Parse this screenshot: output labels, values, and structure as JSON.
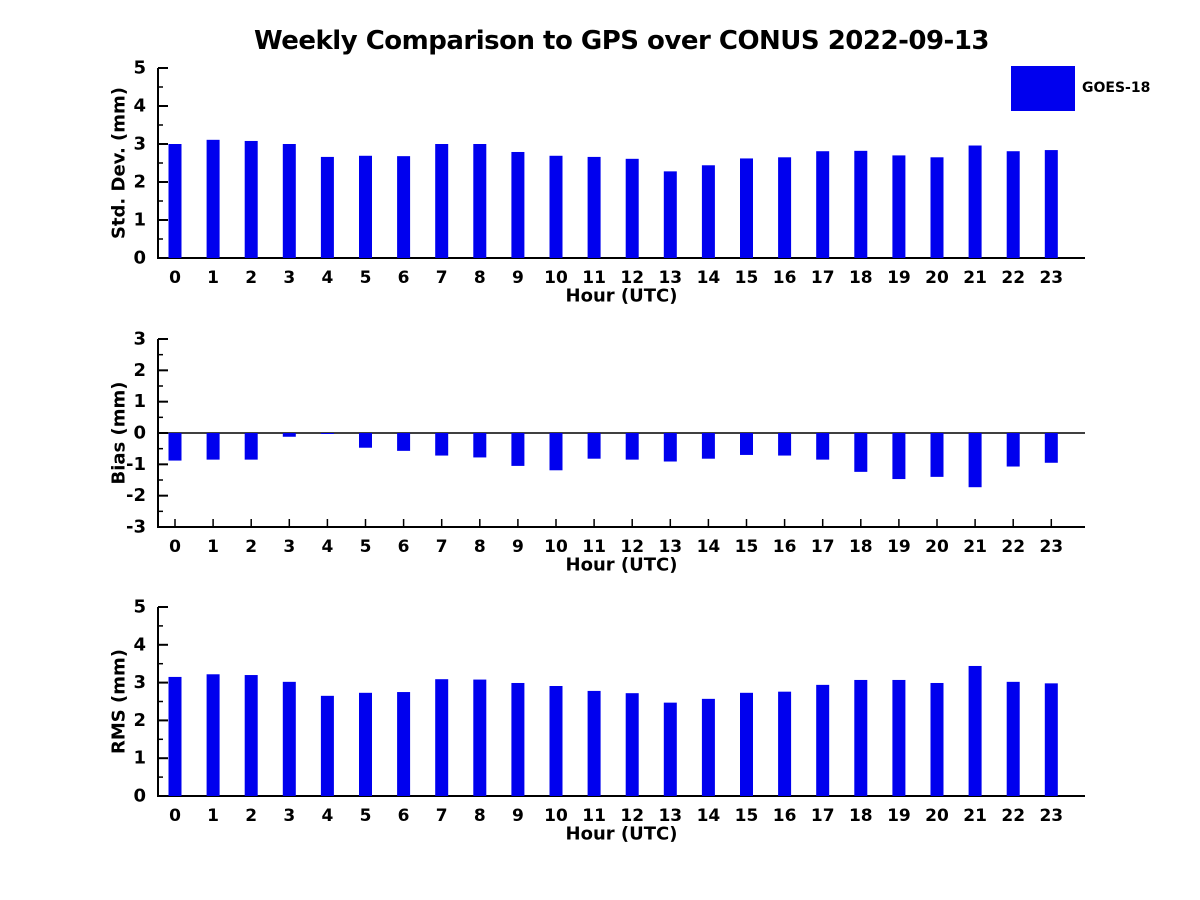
{
  "title": "Weekly Comparison to GPS over CONUS 2022-09-13",
  "legend": {
    "label": "GOES-18",
    "color": "#0000ee",
    "position": "upper-right"
  },
  "colors": {
    "bar": "#0000ee",
    "axis": "#000000",
    "text": "#000000",
    "background": "#ffffff"
  },
  "chart_data": [
    {
      "type": "bar",
      "name": "std-dev",
      "series_name": "GOES-18",
      "ylabel": "Std. Dev. (mm)",
      "xlabel": "Hour (UTC)",
      "categories": [
        "0",
        "1",
        "2",
        "3",
        "4",
        "5",
        "6",
        "7",
        "8",
        "9",
        "10",
        "11",
        "12",
        "13",
        "14",
        "15",
        "16",
        "17",
        "18",
        "19",
        "20",
        "21",
        "22",
        "23"
      ],
      "values": [
        3.0,
        3.11,
        3.08,
        3.0,
        2.66,
        2.69,
        2.68,
        3.0,
        3.0,
        2.79,
        2.69,
        2.66,
        2.61,
        2.28,
        2.44,
        2.62,
        2.65,
        2.81,
        2.82,
        2.7,
        2.65,
        2.96,
        2.81,
        2.84
      ],
      "ylim": [
        0,
        5
      ],
      "yticks": [
        0,
        1,
        2,
        3,
        4,
        5
      ],
      "minor_tick_step": 0.5,
      "grid": false,
      "x_axis_ticks_visible": false,
      "zero_line": false
    },
    {
      "type": "bar",
      "name": "bias",
      "series_name": "GOES-18",
      "ylabel": "Bias (mm)",
      "xlabel": "Hour (UTC)",
      "categories": [
        "0",
        "1",
        "2",
        "3",
        "4",
        "5",
        "6",
        "7",
        "8",
        "9",
        "10",
        "11",
        "12",
        "13",
        "14",
        "15",
        "16",
        "17",
        "18",
        "19",
        "20",
        "21",
        "22",
        "23"
      ],
      "values": [
        -0.88,
        -0.85,
        -0.85,
        -0.12,
        -0.03,
        -0.47,
        -0.57,
        -0.72,
        -0.78,
        -1.05,
        -1.19,
        -0.82,
        -0.85,
        -0.91,
        -0.82,
        -0.7,
        -0.72,
        -0.85,
        -1.24,
        -1.47,
        -1.4,
        -1.73,
        -1.07,
        -0.95
      ],
      "ylim": [
        -3,
        3
      ],
      "yticks": [
        -3,
        -2,
        -1,
        0,
        1,
        2,
        3
      ],
      "minor_tick_step": 0.5,
      "grid": false,
      "x_axis_ticks_visible": true,
      "zero_line": true
    },
    {
      "type": "bar",
      "name": "rms",
      "series_name": "GOES-18",
      "ylabel": "RMS (mm)",
      "xlabel": "Hour (UTC)",
      "categories": [
        "0",
        "1",
        "2",
        "3",
        "4",
        "5",
        "6",
        "7",
        "8",
        "9",
        "10",
        "11",
        "12",
        "13",
        "14",
        "15",
        "16",
        "17",
        "18",
        "19",
        "20",
        "21",
        "22",
        "23"
      ],
      "values": [
        3.15,
        3.22,
        3.2,
        3.02,
        2.65,
        2.73,
        2.75,
        3.09,
        3.08,
        2.99,
        2.91,
        2.78,
        2.72,
        2.47,
        2.57,
        2.73,
        2.76,
        2.94,
        3.07,
        3.07,
        2.99,
        3.44,
        3.02,
        2.98
      ],
      "ylim": [
        0,
        5
      ],
      "yticks": [
        0,
        1,
        2,
        3,
        4,
        5
      ],
      "minor_tick_step": 0.5,
      "grid": false,
      "x_axis_ticks_visible": false,
      "zero_line": false
    }
  ]
}
